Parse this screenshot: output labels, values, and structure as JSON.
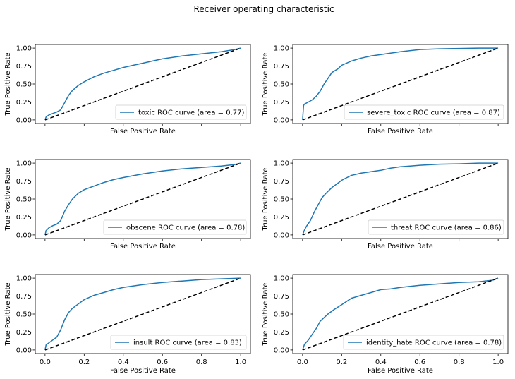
{
  "figure": {
    "title": "Receiver operating characteristic"
  },
  "colors": {
    "roc": "#1f77b4",
    "diagonal": "#000000",
    "axes": "#000000",
    "legend_border": "#cccccc"
  },
  "chart_data": [
    {
      "type": "line",
      "xlabel": "False Positive Rate",
      "ylabel": "True Positive Rate",
      "xlim": [
        -0.05,
        1.05
      ],
      "ylim": [
        -0.05,
        1.05
      ],
      "show_xticklabels": false,
      "legend_placement": "lower-right",
      "series": [
        {
          "name": "toxic ROC curve (area = 0.77)",
          "x": [
            0,
            0.005,
            0.02,
            0.04,
            0.06,
            0.08,
            0.1,
            0.12,
            0.14,
            0.17,
            0.2,
            0.25,
            0.3,
            0.35,
            0.4,
            0.45,
            0.5,
            0.55,
            0.6,
            0.7,
            0.8,
            0.9,
            0.97,
            1
          ],
          "y": [
            0,
            0.04,
            0.07,
            0.09,
            0.11,
            0.14,
            0.24,
            0.34,
            0.41,
            0.48,
            0.53,
            0.6,
            0.65,
            0.69,
            0.73,
            0.76,
            0.79,
            0.82,
            0.85,
            0.89,
            0.92,
            0.95,
            0.98,
            1
          ]
        },
        {
          "name": "",
          "style": "diagonal",
          "x": [
            0,
            1
          ],
          "y": [
            0,
            1
          ]
        }
      ]
    },
    {
      "type": "line",
      "xlabel": "False Positive Rate",
      "ylabel": "True Positive Rate",
      "xlim": [
        -0.05,
        1.05
      ],
      "ylim": [
        -0.05,
        1.05
      ],
      "show_xticklabels": false,
      "legend_placement": "lower-right",
      "series": [
        {
          "name": "severe_toxic ROC curve (area = 0.87)",
          "x": [
            0,
            0.005,
            0.01,
            0.03,
            0.05,
            0.07,
            0.09,
            0.11,
            0.13,
            0.15,
            0.18,
            0.2,
            0.25,
            0.3,
            0.35,
            0.4,
            0.5,
            0.6,
            0.7,
            0.8,
            0.9,
            1
          ],
          "y": [
            0,
            0.2,
            0.22,
            0.25,
            0.28,
            0.33,
            0.4,
            0.5,
            0.58,
            0.66,
            0.71,
            0.76,
            0.82,
            0.86,
            0.89,
            0.91,
            0.95,
            0.98,
            0.99,
            0.995,
            1,
            1
          ]
        },
        {
          "name": "",
          "style": "diagonal",
          "x": [
            0,
            1
          ],
          "y": [
            0,
            1
          ]
        }
      ]
    },
    {
      "type": "line",
      "xlabel": "False Positive Rate",
      "ylabel": "True Positive Rate",
      "xlim": [
        -0.05,
        1.05
      ],
      "ylim": [
        -0.05,
        1.05
      ],
      "show_xticklabels": false,
      "legend_placement": "lower-right",
      "series": [
        {
          "name": "obscene ROC curve (area = 0.78)",
          "x": [
            0,
            0.005,
            0.02,
            0.04,
            0.06,
            0.08,
            0.1,
            0.12,
            0.14,
            0.17,
            0.2,
            0.25,
            0.3,
            0.35,
            0.4,
            0.5,
            0.6,
            0.7,
            0.8,
            0.9,
            0.97,
            1
          ],
          "y": [
            0,
            0.06,
            0.1,
            0.13,
            0.15,
            0.2,
            0.33,
            0.42,
            0.5,
            0.58,
            0.63,
            0.68,
            0.73,
            0.77,
            0.8,
            0.85,
            0.89,
            0.92,
            0.94,
            0.96,
            0.98,
            1
          ]
        },
        {
          "name": "",
          "style": "diagonal",
          "x": [
            0,
            1
          ],
          "y": [
            0,
            1
          ]
        }
      ]
    },
    {
      "type": "line",
      "xlabel": "False Positive Rate",
      "ylabel": "True Positive Rate",
      "xlim": [
        -0.05,
        1.05
      ],
      "ylim": [
        -0.05,
        1.05
      ],
      "show_xticklabels": false,
      "legend_placement": "lower-right",
      "series": [
        {
          "name": "threat ROC curve (area = 0.86)",
          "x": [
            0,
            0.01,
            0.02,
            0.04,
            0.06,
            0.08,
            0.1,
            0.12,
            0.15,
            0.18,
            0.2,
            0.22,
            0.25,
            0.3,
            0.35,
            0.4,
            0.45,
            0.5,
            0.55,
            0.6,
            0.7,
            0.8,
            0.9,
            1
          ],
          "y": [
            0,
            0.07,
            0.12,
            0.2,
            0.32,
            0.42,
            0.52,
            0.58,
            0.66,
            0.72,
            0.76,
            0.79,
            0.83,
            0.86,
            0.88,
            0.9,
            0.93,
            0.95,
            0.96,
            0.97,
            0.985,
            0.99,
            1,
            1
          ]
        },
        {
          "name": "",
          "style": "diagonal",
          "x": [
            0,
            1
          ],
          "y": [
            0,
            1
          ]
        }
      ]
    },
    {
      "type": "line",
      "xlabel": "False Positive Rate",
      "ylabel": "True Positive Rate",
      "xlim": [
        -0.05,
        1.05
      ],
      "ylim": [
        -0.05,
        1.05
      ],
      "xticks": [
        0.0,
        0.2,
        0.4,
        0.6,
        0.8,
        1.0
      ],
      "xticklabels": [
        "0.0",
        "0.2",
        "0.4",
        "0.6",
        "0.8",
        "1.0"
      ],
      "show_xticklabels": true,
      "legend_placement": "lower-right",
      "series": [
        {
          "name": "insult ROC curve (area = 0.83)",
          "x": [
            0,
            0.005,
            0.02,
            0.04,
            0.06,
            0.08,
            0.1,
            0.12,
            0.14,
            0.17,
            0.2,
            0.25,
            0.3,
            0.35,
            0.4,
            0.5,
            0.6,
            0.7,
            0.8,
            0.9,
            1
          ],
          "y": [
            0,
            0.07,
            0.1,
            0.14,
            0.18,
            0.28,
            0.42,
            0.52,
            0.58,
            0.64,
            0.7,
            0.76,
            0.8,
            0.84,
            0.87,
            0.91,
            0.94,
            0.96,
            0.98,
            0.99,
            1
          ]
        },
        {
          "name": "",
          "style": "diagonal",
          "x": [
            0,
            1
          ],
          "y": [
            0,
            1
          ]
        }
      ]
    },
    {
      "type": "line",
      "xlabel": "False Positive Rate",
      "ylabel": "True Positive Rate",
      "xlim": [
        -0.05,
        1.05
      ],
      "ylim": [
        -0.05,
        1.05
      ],
      "xticks": [
        0.0,
        0.2,
        0.4,
        0.6,
        0.8,
        1.0
      ],
      "xticklabels": [
        "0.0",
        "0.2",
        "0.4",
        "0.6",
        "0.8",
        "1.0"
      ],
      "show_xticklabels": true,
      "legend_placement": "lower-right",
      "series": [
        {
          "name": "identity_hate ROC curve (area = 0.78)",
          "x": [
            0,
            0.01,
            0.03,
            0.05,
            0.07,
            0.09,
            0.11,
            0.13,
            0.16,
            0.2,
            0.25,
            0.3,
            0.35,
            0.4,
            0.45,
            0.5,
            0.6,
            0.7,
            0.8,
            0.9,
            0.97,
            1
          ],
          "y": [
            0,
            0.08,
            0.14,
            0.22,
            0.3,
            0.4,
            0.45,
            0.5,
            0.56,
            0.63,
            0.72,
            0.76,
            0.8,
            0.84,
            0.85,
            0.87,
            0.9,
            0.92,
            0.94,
            0.95,
            0.97,
            1
          ]
        },
        {
          "name": "",
          "style": "diagonal",
          "x": [
            0,
            1
          ],
          "y": [
            0,
            1
          ]
        }
      ]
    }
  ],
  "yticklabels": [
    "0.00",
    "0.25",
    "0.50",
    "0.75",
    "1.00"
  ],
  "yticks": [
    0.0,
    0.25,
    0.5,
    0.75,
    1.0
  ]
}
